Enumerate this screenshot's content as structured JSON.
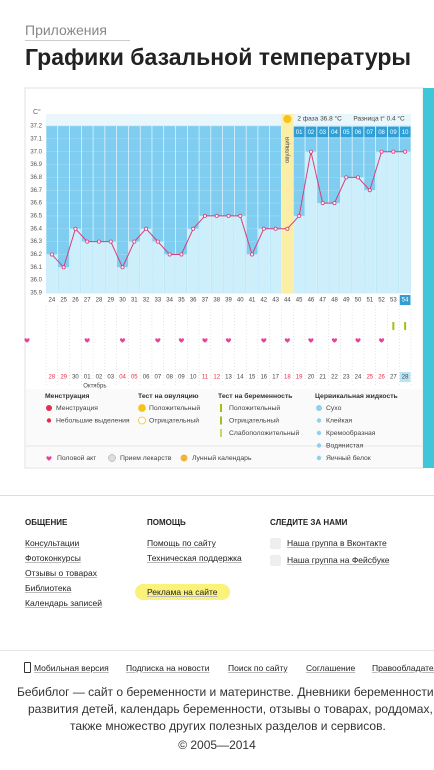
{
  "header": {
    "breadcrumb": "Приложения",
    "title": "Графики базальной температуры"
  },
  "chart_data": {
    "type": "line",
    "unit": "C°",
    "phase2": "2 фаза 36.8 °C",
    "difference": "Разница t° 0.4 °C",
    "ovulation_label": "овуляция",
    "categories": [
      24,
      25,
      26,
      27,
      28,
      29,
      30,
      31,
      32,
      33,
      34,
      35,
      36,
      37,
      38,
      39,
      40,
      41,
      42,
      43,
      44,
      45,
      46,
      47,
      48,
      49,
      50,
      51,
      52,
      53,
      54
    ],
    "values": [
      36.2,
      36.1,
      36.4,
      36.3,
      36.3,
      36.3,
      36.1,
      36.3,
      36.4,
      36.3,
      36.2,
      36.2,
      36.4,
      36.5,
      36.5,
      36.5,
      36.5,
      36.2,
      36.4,
      36.4,
      36.4,
      36.5,
      37.0,
      36.6,
      36.6,
      36.8,
      36.8,
      36.7,
      37.0,
      37.0,
      37.0
    ],
    "color": "#d6407a",
    "ovulation_index": 20,
    "phase2_days": [
      "01",
      "02",
      "03",
      "04",
      "05",
      "06",
      "07",
      "08",
      "09",
      "10"
    ],
    "dates": [
      "28",
      "29",
      "30",
      "01",
      "02",
      "03",
      "04",
      "05",
      "06",
      "07",
      "08",
      "09",
      "10",
      "11",
      "12",
      "13",
      "14",
      "15",
      "16",
      "17",
      "18",
      "19",
      "20",
      "21",
      "22",
      "23",
      "24",
      "25",
      "26",
      "27",
      "28"
    ],
    "weekends": [
      0,
      1,
      6,
      7,
      13,
      14,
      20,
      21,
      27,
      28
    ],
    "month": "Октябрь",
    "month_index": 3,
    "intercourse_indices": [
      3,
      6,
      9,
      11,
      13,
      15,
      18,
      20,
      22,
      24,
      26,
      28
    ],
    "pregnancy_test_indices": [
      29,
      30
    ],
    "ylim": [
      35.9,
      37.2
    ],
    "yticks": [
      35.9,
      {
        "value": 36,
        "label": "36.0"
      },
      36.1,
      36.2,
      36.3,
      36.4,
      36.5,
      36.6,
      36.7,
      36.8,
      36.9,
      {
        "value": 37,
        "label": "37.0"
      },
      37.1,
      37.2
    ],
    "grid": true
  },
  "legend": {
    "groups": [
      {
        "title": "Менструация",
        "items": [
          "Менструация",
          "Небольшие выделения"
        ]
      },
      {
        "title": "Тест на овуляцию",
        "items": [
          "Положительный",
          "Отрицательный"
        ]
      },
      {
        "title": "Тест на беременность",
        "items": [
          "Положительный",
          "Отрицательный",
          "Слабоположительный"
        ]
      },
      {
        "title": "Цервикальная жидкость",
        "items": [
          "Сухо",
          "Клейкая",
          "Кремообразная",
          "Водянистая",
          "Яичный белок"
        ]
      }
    ],
    "extra": [
      "Половой акт",
      "Прием лекарств",
      "Лунный календарь"
    ]
  },
  "footer": {
    "columns": [
      {
        "title": "ОБЩЕНИЕ",
        "links": [
          "Консультации",
          "Фотоконкурсы",
          "Отзывы о товарах",
          "Библиотека",
          "Календарь записей"
        ]
      },
      {
        "title": "ПОМОЩЬ",
        "links": [
          "Помощь по сайту",
          "Техническая поддержка",
          "Реклама на сайте"
        ]
      },
      {
        "title": "СЛЕДИТЕ ЗА НАМИ",
        "links": [
          "Наша группа в Вконтакте",
          "Наша группа на Фейсбуке"
        ]
      }
    ],
    "nav": [
      "Мобильная версия",
      "Подписка на новости",
      "Поиск по сайту",
      "Соглашение",
      "Правообладатели"
    ],
    "about": [
      "Бебиблог — сайт о беременности и материнстве. Дневники беременности,",
      "развития детей, календарь беременности, отзывы о товарах, роддомах, а",
      "также множество других полезных разделов и сервисов."
    ],
    "copyright": "© 2005—2014"
  }
}
